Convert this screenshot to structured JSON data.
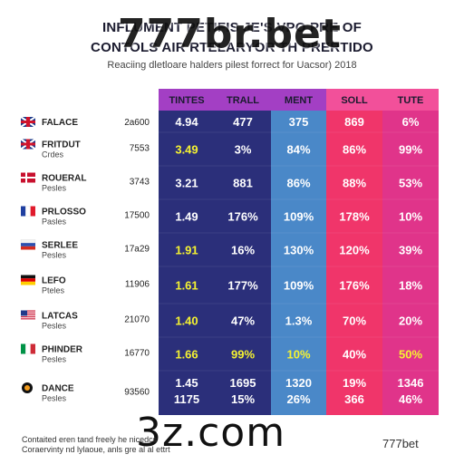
{
  "header": {
    "title_line1": "INFLUMENT PETIFIS JE'S VPO PRE OF",
    "title_line2": "CONTOLS AIR RTELARYOR TH PRERTIDO",
    "subtitle": "Reaciing dletloare halders pilest forrect for Uacsor) 2018"
  },
  "watermarks": {
    "top": "777br.bet",
    "bottom": "3z.com",
    "corner": "777bet"
  },
  "footnote": {
    "line1": "Contaited eren tand freely he nicedcs",
    "line2": "Coraervinty nd lylaoue, anls gre al al ettrt"
  },
  "colors": {
    "navy": "#2b2f7a",
    "blue": "#3f74b8",
    "steel": "#4a88c8",
    "pink": "#f0356a",
    "magenta": "#e0348a",
    "header_purple": "#a33fc4",
    "header_pink": "#f2509a",
    "cell_yellow": "#f5f231"
  },
  "chart_data": {
    "type": "table",
    "columns": [
      "TINTES",
      "TRALL",
      "MENT",
      "SOLL",
      "TUTE"
    ],
    "rows": [
      {
        "label": "FALACE",
        "sub": "",
        "value": "2a600",
        "icon": "uk-flag-icon",
        "cells": [
          "4.94",
          "477",
          "375",
          "869",
          "6%"
        ]
      },
      {
        "label": "FRITDUT",
        "sub": "Crdes",
        "value": "7553",
        "icon": "uk-flag-icon",
        "cells": [
          "3.49",
          "3%",
          "84%",
          "86%",
          "99%"
        ]
      },
      {
        "label": "ROUERAL",
        "sub": "Pesles",
        "value": "3743",
        "icon": "denmark-flag-icon",
        "cells": [
          "3.21",
          "881",
          "86%",
          "88%",
          "53%"
        ]
      },
      {
        "label": "PRLOSSO",
        "sub": "Pasles",
        "value": "17500",
        "icon": "france-flag-icon",
        "cells": [
          "1.49",
          "176%",
          "109%",
          "178%",
          "10%"
        ]
      },
      {
        "label": "SERLEE",
        "sub": "Pesles",
        "value": "17a29",
        "icon": "russia-flag-icon",
        "cells": [
          "1.91",
          "16%",
          "130%",
          "120%",
          "39%"
        ]
      },
      {
        "label": "LEFO",
        "sub": "Pteles",
        "value": "11906",
        "icon": "germany-flag-icon",
        "cells": [
          "1.61",
          "177%",
          "109%",
          "176%",
          "18%"
        ]
      },
      {
        "label": "LATCAS",
        "sub": "Pesles",
        "value": "21070",
        "icon": "us-flag-icon",
        "cells": [
          "1.40",
          "47%",
          "1.3%",
          "70%",
          "20%"
        ]
      },
      {
        "label": "PHINDER",
        "sub": "Pesles",
        "value": "16770",
        "icon": "italy-flag-icon",
        "cells": [
          "1.66",
          "99%",
          "10%",
          "40%",
          "50%"
        ]
      },
      {
        "label": "DANCE",
        "sub": "Pesles",
        "value": "93560",
        "icon": "orb-flag-icon",
        "cells": [
          "1.45",
          "1695",
          "1320",
          "19%",
          "1346"
        ],
        "cells2": [
          "1175",
          "15%",
          "26%",
          "366",
          "46%"
        ]
      }
    ],
    "yellow_cells": [
      [
        1,
        0
      ],
      [
        4,
        0
      ],
      [
        5,
        0
      ],
      [
        6,
        0
      ],
      [
        7,
        0
      ],
      [
        7,
        1
      ],
      [
        7,
        2
      ],
      [
        7,
        4
      ]
    ]
  }
}
